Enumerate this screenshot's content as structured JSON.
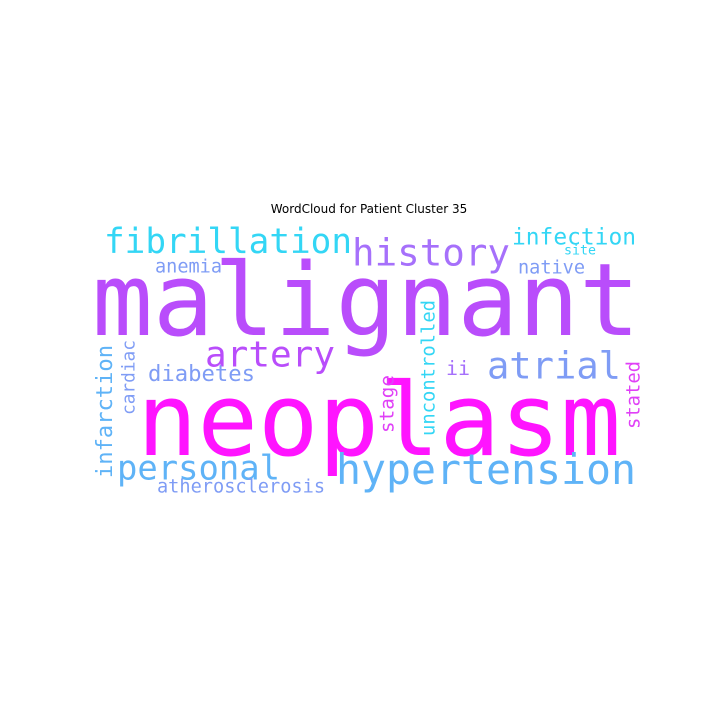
{
  "title": "WordCloud for Patient Cluster 35",
  "colors": {
    "cyan": "#33d6f5",
    "sky": "#5fb3f7",
    "blue": "#7f9cf5",
    "violet": "#a670fb",
    "purple": "#b94dfb",
    "magenta": "#ff14ff",
    "pink": "#e040f7"
  },
  "words": [
    {
      "text": "malignant",
      "color": "purple",
      "vertical": false
    },
    {
      "text": "neoplasm",
      "color": "magenta",
      "vertical": false
    },
    {
      "text": "hypertension",
      "color": "sky",
      "vertical": false
    },
    {
      "text": "fibrillation",
      "color": "cyan",
      "vertical": false
    },
    {
      "text": "history",
      "color": "violet",
      "vertical": false
    },
    {
      "text": "atrial",
      "color": "blue",
      "vertical": false
    },
    {
      "text": "artery",
      "color": "purple",
      "vertical": false
    },
    {
      "text": "personal",
      "color": "sky",
      "vertical": false
    },
    {
      "text": "infection",
      "color": "cyan",
      "vertical": false
    },
    {
      "text": "diabetes",
      "color": "blue",
      "vertical": false
    },
    {
      "text": "anemia",
      "color": "blue",
      "vertical": false
    },
    {
      "text": "site",
      "color": "cyan",
      "vertical": false
    },
    {
      "text": "native",
      "color": "blue",
      "vertical": false
    },
    {
      "text": "ii",
      "color": "violet",
      "vertical": false
    },
    {
      "text": "atherosclerosis",
      "color": "blue",
      "vertical": false
    },
    {
      "text": "infarction",
      "color": "sky",
      "vertical": true
    },
    {
      "text": "cardiac",
      "color": "blue",
      "vertical": true
    },
    {
      "text": "stage",
      "color": "pink",
      "vertical": true
    },
    {
      "text": "uncontrolled",
      "color": "cyan",
      "vertical": true
    },
    {
      "text": "stated",
      "color": "pink",
      "vertical": true
    }
  ]
}
